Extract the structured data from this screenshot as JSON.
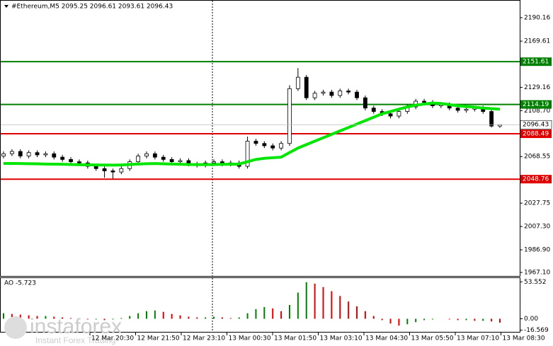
{
  "chart_data": {
    "type": "candlestick",
    "header": "#Ethereum,M5  2095.25 2096.61 2093.61 2096.43",
    "watermark": [
      "instaforex",
      "Instant Forex Trading"
    ],
    "ylim": [
      1964,
      2205
    ],
    "yticks": [
      2190.16,
      2169.61,
      2129.16,
      {
        "value": 2108.7,
        "label": "2108.70"
      },
      2068.55,
      2027.75,
      {
        "value": 2007.3,
        "label": "2007.30"
      },
      {
        "value": 1986.9,
        "label": "1986.90"
      },
      {
        "value": 1967.1,
        "label": "1967.10"
      }
    ],
    "x_labels": [
      "12 Mar 20:30",
      "12 Mar 21:50",
      "12 Mar 23:10",
      "13 Mar 00:30",
      "13 Mar 01:50",
      "13 Mar 03:10",
      "13 Mar 04:30",
      "13 Mar 05:50",
      "13 Mar 07:10",
      "13 Mar 08:30"
    ],
    "open": [
      2069,
      2071,
      2073,
      2069,
      2072,
      2070,
      2071,
      2068,
      2066,
      2064,
      2063,
      2060,
      2058,
      2056,
      2055,
      2058,
      2064,
      2069,
      2071,
      2068,
      2066,
      2064,
      2065,
      2062,
      2061,
      2063,
      2064,
      2062,
      2063,
      2060,
      2082,
      2080,
      2078,
      2076,
      2080,
      2128,
      2138,
      2120,
      2124,
      2125,
      2122,
      2126,
      2125,
      2120,
      2111,
      2108,
      2106,
      2104,
      2108,
      2112,
      2117,
      2116,
      2113,
      2114,
      2111,
      2109,
      2110,
      2111,
      2108,
      2095.25
    ],
    "high": [
      2073,
      2075,
      2075,
      2074,
      2074,
      2073,
      2073,
      2070,
      2068,
      2066,
      2065,
      2062,
      2060,
      2058,
      2060,
      2066,
      2071,
      2073,
      2073,
      2070,
      2068,
      2067,
      2067,
      2064,
      2065,
      2066,
      2066,
      2065,
      2065,
      2086,
      2084,
      2082,
      2080,
      2082,
      2131,
      2146,
      2140,
      2126,
      2127,
      2127,
      2128,
      2128,
      2127,
      2122,
      2113,
      2110,
      2108,
      2110,
      2114,
      2119,
      2119,
      2118,
      2116,
      2116,
      2113,
      2112,
      2113,
      2113,
      2110,
      2096.61
    ],
    "low": [
      2067,
      2069,
      2067,
      2067,
      2068,
      2068,
      2066,
      2064,
      2062,
      2061,
      2058,
      2056,
      2050,
      2049,
      2053,
      2056,
      2062,
      2067,
      2066,
      2064,
      2062,
      2062,
      2060,
      2059,
      2059,
      2061,
      2060,
      2060,
      2058,
      2058,
      2078,
      2076,
      2074,
      2074,
      2078,
      2126,
      2118,
      2118,
      2122,
      2120,
      2120,
      2123,
      2118,
      2109,
      2106,
      2104,
      2102,
      2102,
      2106,
      2110,
      2114,
      2111,
      2111,
      2109,
      2107,
      2107,
      2108,
      2106,
      2094,
      2093.61
    ],
    "close": [
      2071,
      2073,
      2069,
      2072,
      2070,
      2071,
      2068,
      2066,
      2064,
      2063,
      2060,
      2058,
      2056,
      2055,
      2058,
      2064,
      2069,
      2071,
      2068,
      2066,
      2064,
      2065,
      2062,
      2061,
      2063,
      2064,
      2062,
      2063,
      2060,
      2082,
      2080,
      2078,
      2076,
      2080,
      2128,
      2138,
      2120,
      2124,
      2125,
      2122,
      2126,
      2125,
      2120,
      2111,
      2108,
      2106,
      2104,
      2108,
      2112,
      2117,
      2116,
      2113,
      2114,
      2111,
      2109,
      2110,
      2111,
      2108,
      2095.25,
      2096.43
    ],
    "ma": {
      "color": "#00e600",
      "values": [
        2062.5,
        2062.5,
        2062.4,
        2062.3,
        2062.2,
        2062,
        2061.9,
        2061.8,
        2061.6,
        2061.4,
        2061.3,
        2061.2,
        2061.1,
        2061,
        2061.2,
        2061.6,
        2062,
        2062.3,
        2062.4,
        2062.2,
        2062,
        2061.8,
        2061.6,
        2061.5,
        2061.5,
        2061.6,
        2061.7,
        2061.8,
        2062,
        2064,
        2066,
        2067,
        2067.5,
        2068,
        2072,
        2076,
        2079,
        2082,
        2085,
        2088,
        2091,
        2094,
        2097,
        2100,
        2103,
        2106,
        2108,
        2110,
        2112,
        2113.5,
        2114.5,
        2115.4,
        2115,
        2114,
        2113,
        2112.3,
        2111.8,
        2111,
        2110.5,
        2110
      ]
    },
    "levels": [
      {
        "value": 2151.61,
        "color": "#008000"
      },
      {
        "value": 2114.19,
        "color": "#008000"
      },
      {
        "value": 2088.49,
        "color": "#e00000"
      },
      {
        "value": 2048.76,
        "color": "#e00000"
      }
    ],
    "current_price": 2096.43,
    "ao": {
      "label": "AO -5.723",
      "up_color": "#008000",
      "down_color": "#e00000",
      "ylim": [
        -19,
        59
      ],
      "yticks": [
        53.552,
        {
          "value": 0,
          "label": "0.00"
        },
        -16.569
      ],
      "values": [
        8,
        7,
        6,
        5,
        4,
        4,
        3,
        2,
        1,
        0,
        -1,
        -1,
        -2,
        -1,
        1,
        4,
        8,
        11,
        12,
        10,
        7,
        5,
        3,
        2,
        2,
        3,
        2,
        1,
        2,
        8,
        14,
        17,
        15,
        11,
        20,
        38,
        53,
        51,
        46,
        40,
        33,
        25,
        18,
        11,
        4,
        -2,
        -7,
        -10,
        -8,
        -5,
        -2,
        -1,
        0,
        -1,
        -2,
        -2,
        -3,
        -3,
        -4,
        -5.723
      ]
    }
  }
}
